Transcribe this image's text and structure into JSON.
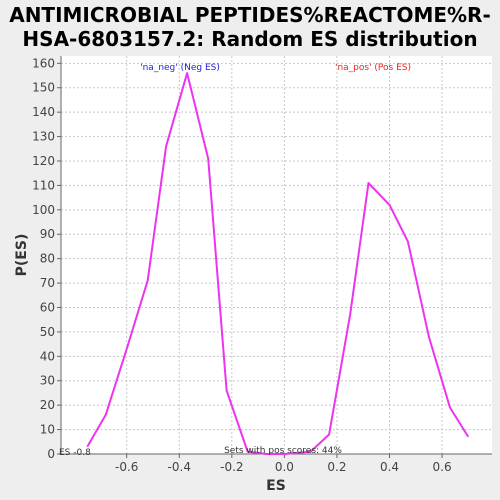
{
  "chart_data": {
    "type": "line",
    "title_line1": "ANTIMICROBIAL PEPTIDES%REACTOME%R-",
    "title_line2": "HSA-6803157.2: Random ES distribution",
    "xlabel": "ES",
    "ylabel": "P(ES)",
    "xlim": [
      -0.85,
      0.79
    ],
    "ylim": [
      0,
      163
    ],
    "xticks": [
      -0.6,
      -0.4,
      -0.2,
      0.0,
      0.2,
      0.4,
      0.6
    ],
    "xtick_labels": [
      "-0.6",
      "-0.4",
      "-0.2",
      "0.0",
      "0.2",
      "0.4",
      "0.6"
    ],
    "yticks": [
      0,
      10,
      20,
      30,
      40,
      50,
      60,
      70,
      80,
      90,
      100,
      110,
      120,
      130,
      140,
      150,
      160
    ],
    "ytick_labels": [
      "0",
      "10",
      "20",
      "30",
      "40",
      "50",
      "60",
      "70",
      "80",
      "90",
      "100",
      "110",
      "120",
      "130",
      "140",
      "150",
      "160"
    ],
    "grid": true,
    "series": [
      {
        "color": "#ee33ee",
        "points": [
          [
            -0.75,
            3
          ],
          [
            -0.68,
            16
          ],
          [
            -0.6,
            43
          ],
          [
            -0.52,
            71
          ],
          [
            -0.45,
            126
          ],
          [
            -0.37,
            156
          ],
          [
            -0.29,
            121
          ],
          [
            -0.22,
            26
          ],
          [
            -0.14,
            1
          ],
          [
            -0.07,
            0
          ],
          [
            0.0,
            0
          ],
          [
            0.1,
            1
          ],
          [
            0.17,
            8
          ],
          [
            0.25,
            57
          ],
          [
            0.32,
            111
          ],
          [
            0.4,
            102
          ],
          [
            0.47,
            87
          ],
          [
            0.55,
            48
          ],
          [
            0.63,
            19
          ],
          [
            0.7,
            7
          ]
        ]
      }
    ],
    "annotations": {
      "neg_label": "'na_neg' (Neg ES)",
      "neg_color": "#2222dd",
      "pos_label": "'na_pos' (Pos ES)",
      "pos_color": "#ee2222",
      "pos_scores": "Sets with pos scores: 44%",
      "es_marker": "ES -0.8"
    }
  }
}
